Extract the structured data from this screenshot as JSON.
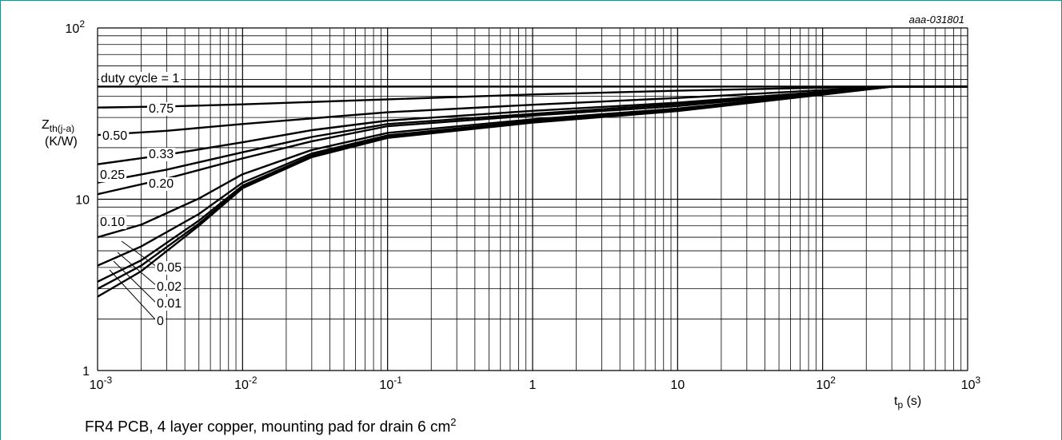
{
  "caption": {
    "text": "FR4 PCB, 4 layer copper, mounting pad for drain 6 cm",
    "superscript": "2"
  },
  "chart_data": {
    "type": "line",
    "id_label": "aaa-031801",
    "x_axis": {
      "scale": "log",
      "range": [
        0.001,
        1000
      ],
      "label_main": "t",
      "label_sub": "p",
      "label_unit": " (s)",
      "ticks": [
        {
          "value": 0.001,
          "base": "10",
          "exp": "-3"
        },
        {
          "value": 0.01,
          "base": "10",
          "exp": "-2"
        },
        {
          "value": 0.1,
          "base": "10",
          "exp": "-1"
        },
        {
          "value": 1,
          "base": "1",
          "exp": ""
        },
        {
          "value": 10,
          "base": "10",
          "exp": ""
        },
        {
          "value": 100,
          "base": "10",
          "exp": "2"
        },
        {
          "value": 1000,
          "base": "10",
          "exp": "3"
        }
      ]
    },
    "y_axis": {
      "scale": "log",
      "range": [
        1,
        100
      ],
      "label_main": "Z",
      "label_sub": "th(j-a)",
      "label_unit": "(K/W)",
      "ticks": [
        {
          "value": 1,
          "base": "1",
          "exp": ""
        },
        {
          "value": 10,
          "base": "10",
          "exp": ""
        },
        {
          "value": 100,
          "base": "10",
          "exp": "2"
        }
      ]
    },
    "grid": true,
    "series": [
      {
        "name": "duty cycle = 1",
        "points": [
          [
            0.001,
            45.5
          ],
          [
            1000,
            45.5
          ]
        ]
      },
      {
        "name": "0.75",
        "points": [
          [
            0.001,
            34.3
          ],
          [
            0.003,
            34.8
          ],
          [
            0.01,
            35.8
          ],
          [
            0.1,
            38.3
          ],
          [
            1,
            40.9
          ],
          [
            10,
            43.0
          ],
          [
            100,
            44.8
          ],
          [
            300,
            45.5
          ],
          [
            1000,
            45.5
          ]
        ]
      },
      {
        "name": "0.50",
        "points": [
          [
            0.001,
            23.7
          ],
          [
            0.003,
            25.1
          ],
          [
            0.01,
            27.5
          ],
          [
            0.1,
            32.2
          ],
          [
            1,
            35.6
          ],
          [
            10,
            39.0
          ],
          [
            100,
            43.4
          ],
          [
            300,
            45.5
          ],
          [
            1000,
            45.5
          ]
        ]
      },
      {
        "name": "0.33",
        "points": [
          [
            0.001,
            16.0
          ],
          [
            0.003,
            18.2
          ],
          [
            0.01,
            21.5
          ],
          [
            0.03,
            25.3
          ],
          [
            0.1,
            28.8
          ],
          [
            1,
            32.8
          ],
          [
            10,
            36.6
          ],
          [
            100,
            42.4
          ],
          [
            300,
            45.5
          ],
          [
            1000,
            45.5
          ]
        ]
      },
      {
        "name": "0.25",
        "points": [
          [
            0.001,
            12.5
          ],
          [
            0.003,
            14.9
          ],
          [
            0.01,
            18.8
          ],
          [
            0.03,
            23.1
          ],
          [
            0.1,
            27.5
          ],
          [
            1,
            31.5
          ],
          [
            10,
            35.9
          ],
          [
            100,
            42.0
          ],
          [
            300,
            45.5
          ],
          [
            1000,
            45.5
          ]
        ]
      },
      {
        "name": "0.20",
        "points": [
          [
            0.001,
            10.7
          ],
          [
            0.003,
            13.2
          ],
          [
            0.01,
            17.3
          ],
          [
            0.03,
            21.8
          ],
          [
            0.1,
            26.7
          ],
          [
            1,
            30.8
          ],
          [
            10,
            35.0
          ],
          [
            100,
            41.9
          ],
          [
            300,
            45.5
          ],
          [
            1000,
            45.5
          ]
        ]
      },
      {
        "name": "0.10",
        "points": [
          [
            0.001,
            6.0
          ],
          [
            0.002,
            7.1
          ],
          [
            0.005,
            10.1
          ],
          [
            0.01,
            14.0
          ],
          [
            0.03,
            19.4
          ],
          [
            0.1,
            24.4
          ],
          [
            1,
            29.3
          ],
          [
            10,
            33.8
          ],
          [
            100,
            41.4
          ],
          [
            300,
            45.5
          ],
          [
            1000,
            45.5
          ]
        ]
      },
      {
        "name": "0.05",
        "points": [
          [
            0.001,
            4.1
          ],
          [
            0.002,
            5.3
          ],
          [
            0.005,
            8.2
          ],
          [
            0.01,
            12.5
          ],
          [
            0.03,
            18.5
          ],
          [
            0.1,
            23.6
          ],
          [
            1,
            28.7
          ],
          [
            10,
            33.3
          ],
          [
            100,
            41.2
          ],
          [
            300,
            45.5
          ],
          [
            1000,
            45.5
          ]
        ]
      },
      {
        "name": "0.02",
        "points": [
          [
            0.001,
            3.3
          ],
          [
            0.002,
            4.4
          ],
          [
            0.005,
            7.5
          ],
          [
            0.01,
            12.0
          ],
          [
            0.03,
            18.0
          ],
          [
            0.1,
            23.2
          ],
          [
            1,
            28.4
          ],
          [
            10,
            33.0
          ],
          [
            100,
            41.0
          ],
          [
            300,
            45.5
          ],
          [
            1000,
            45.5
          ]
        ]
      },
      {
        "name": "0.01",
        "points": [
          [
            0.001,
            3.0
          ],
          [
            0.002,
            4.1
          ],
          [
            0.005,
            7.2
          ],
          [
            0.01,
            11.8
          ],
          [
            0.03,
            17.8
          ],
          [
            0.1,
            23.0
          ],
          [
            1,
            28.2
          ],
          [
            10,
            32.9
          ],
          [
            100,
            40.9
          ],
          [
            300,
            45.5
          ],
          [
            1000,
            45.5
          ]
        ]
      },
      {
        "name": "0",
        "points": [
          [
            0.001,
            2.7
          ],
          [
            0.002,
            3.8
          ],
          [
            0.005,
            7.0
          ],
          [
            0.01,
            11.6
          ],
          [
            0.03,
            17.6
          ],
          [
            0.1,
            22.8
          ],
          [
            1,
            28.0
          ],
          [
            10,
            32.7
          ],
          [
            100,
            40.8
          ],
          [
            300,
            45.5
          ],
          [
            1000,
            45.5
          ]
        ]
      }
    ]
  }
}
